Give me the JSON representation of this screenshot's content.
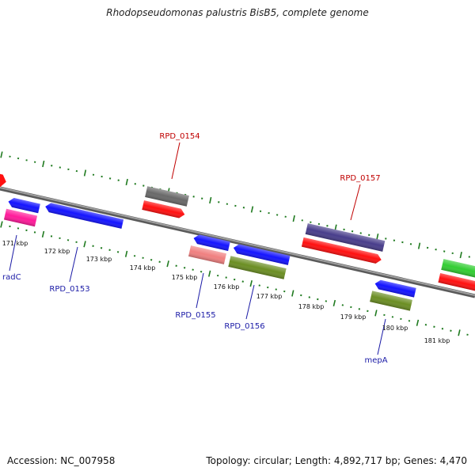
{
  "title": "Rhodopseudomonas palustris BisB5, complete genome",
  "footer": {
    "accession": "Accession: NC_007958",
    "topology": "Topology: circular; Length: 4,892,717 bp; Genes: 4,470"
  },
  "kbp_labels": [
    "171 kbp",
    "172 kbp",
    "173 kbp",
    "174 kbp",
    "175 kbp",
    "176 kbp",
    "177 kbp",
    "178 kbp",
    "179 kbp",
    "180 kbp",
    "181 kbp"
  ],
  "gene_labels": {
    "top": [
      "RPD_0154",
      "RPD_0157"
    ],
    "bottom": [
      "radC",
      "RPD_0153",
      "RPD_0155",
      "RPD_0156",
      "mepA"
    ]
  },
  "colors": {
    "backbone": "#8a8a8a",
    "ticks": "#1f7a1f",
    "red": "#ff1010",
    "blue": "#1414ff",
    "pink": "#ff1a9a",
    "salmon": "#f08080",
    "olive": "#6b8e23",
    "slate": "#483d8b",
    "gray": "#696969",
    "green": "#32cd32",
    "label_top": "#c00000",
    "label_bottom": "#1a1aa6"
  }
}
